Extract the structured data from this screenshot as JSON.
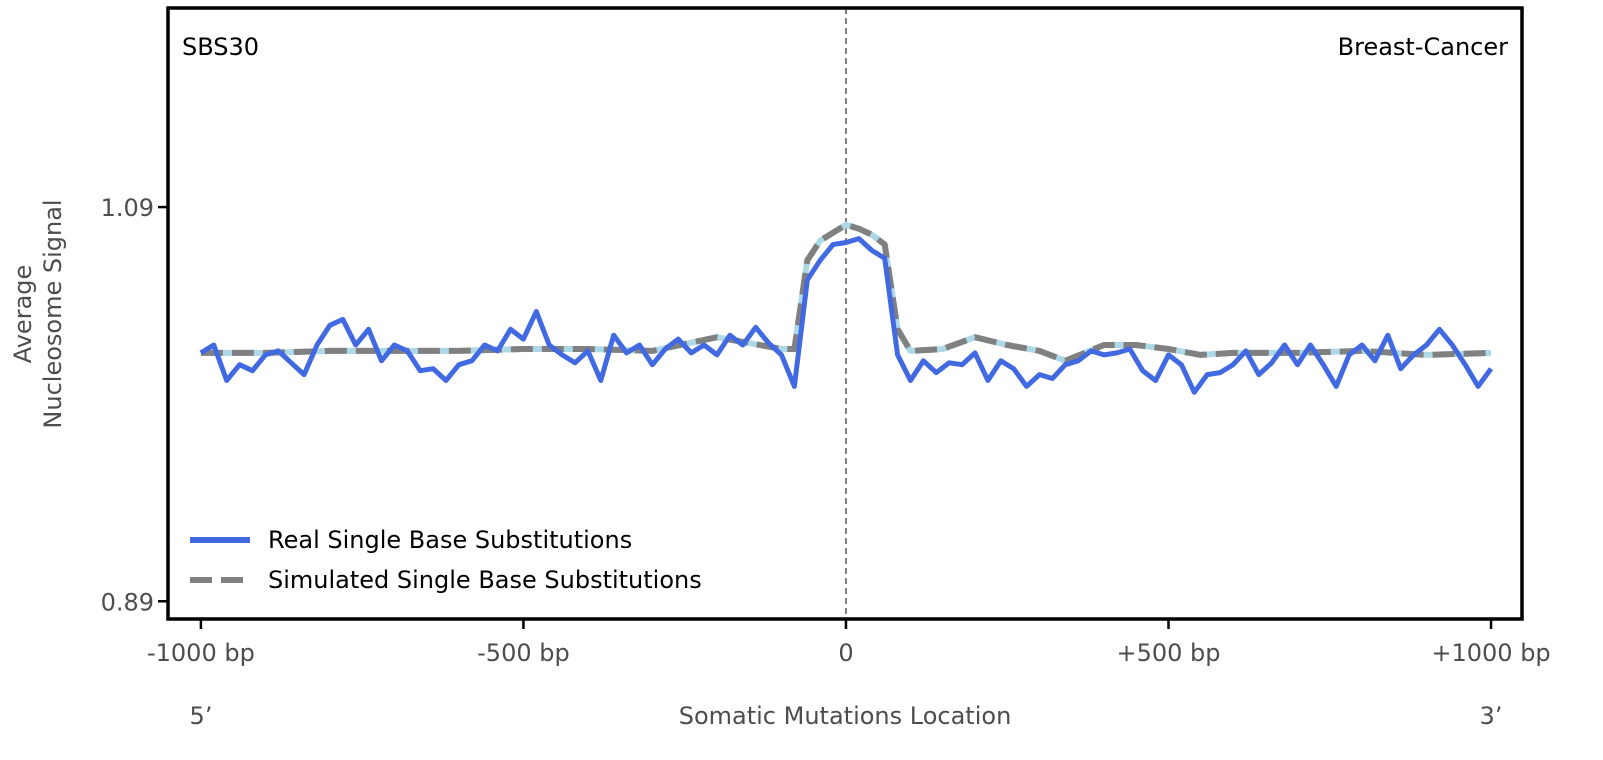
{
  "chart_data": {
    "type": "line",
    "annotations": {
      "left": "SBS30",
      "right": "Breast-Cancer"
    },
    "xlabel": "Somatic Mutations Location",
    "ylabel": [
      "Average",
      "Nucleosome Signal"
    ],
    "x_end_labels": {
      "left": "5’",
      "right": "3’"
    },
    "xlim": [
      -1051,
      1048
    ],
    "ylim": [
      0.881,
      1.191
    ],
    "xticks": [
      {
        "value": -1000,
        "label": "-1000 bp"
      },
      {
        "value": -500,
        "label": "-500 bp"
      },
      {
        "value": 0,
        "label": "0"
      },
      {
        "value": 500,
        "label": "+500 bp"
      },
      {
        "value": 1000,
        "label": "+1000 bp"
      }
    ],
    "yticks": [
      {
        "value": 0.89,
        "label": "0.89"
      },
      {
        "value": 1.09,
        "label": "1.09"
      }
    ],
    "grid": false,
    "center_line": {
      "x": 0,
      "style": "dashed",
      "color": "#808080"
    },
    "legend_placement": "lower-left",
    "series": [
      {
        "name": "Real Single Base Substitutions",
        "color": "#4169e1",
        "style": "solid",
        "x": [
          -1000,
          -980,
          -960,
          -940,
          -920,
          -900,
          -880,
          -860,
          -840,
          -820,
          -800,
          -780,
          -760,
          -740,
          -720,
          -700,
          -680,
          -660,
          -640,
          -620,
          -600,
          -580,
          -560,
          -540,
          -520,
          -500,
          -480,
          -460,
          -440,
          -420,
          -400,
          -380,
          -360,
          -340,
          -320,
          -300,
          -280,
          -260,
          -240,
          -220,
          -200,
          -180,
          -160,
          -140,
          -120,
          -100,
          -80,
          -60,
          -40,
          -20,
          0,
          20,
          40,
          60,
          80,
          100,
          120,
          140,
          160,
          180,
          200,
          220,
          240,
          260,
          280,
          300,
          320,
          340,
          360,
          380,
          400,
          420,
          440,
          460,
          480,
          500,
          520,
          540,
          560,
          580,
          600,
          620,
          640,
          660,
          680,
          700,
          720,
          740,
          760,
          780,
          800,
          820,
          840,
          860,
          880,
          900,
          920,
          940,
          960,
          980,
          1000
        ],
        "y": [
          1.016,
          1.02,
          1.002,
          1.01,
          1.007,
          1.015,
          1.017,
          1.011,
          1.005,
          1.02,
          1.03,
          1.033,
          1.02,
          1.028,
          1.012,
          1.02,
          1.017,
          1.007,
          1.008,
          1.002,
          1.01,
          1.012,
          1.02,
          1.017,
          1.028,
          1.023,
          1.037,
          1.02,
          1.015,
          1.011,
          1.017,
          1.002,
          1.025,
          1.016,
          1.02,
          1.01,
          1.018,
          1.023,
          1.016,
          1.02,
          1.015,
          1.025,
          1.02,
          1.029,
          1.021,
          1.015,
          0.999,
          1.053,
          1.063,
          1.071,
          1.072,
          1.074,
          1.068,
          1.064,
          1.015,
          1.002,
          1.012,
          1.006,
          1.011,
          1.01,
          1.016,
          1.002,
          1.012,
          1.008,
          0.999,
          1.005,
          1.003,
          1.01,
          1.012,
          1.017,
          1.015,
          1.016,
          1.018,
          1.007,
          1.002,
          1.015,
          1.01,
          0.996,
          1.005,
          1.006,
          1.01,
          1.017,
          1.005,
          1.011,
          1.02,
          1.01,
          1.02,
          1.01,
          0.999,
          1.015,
          1.02,
          1.012,
          1.025,
          1.008,
          1.015,
          1.02,
          1.028,
          1.02,
          1.01,
          0.999,
          1.008
        ]
      },
      {
        "name": "Simulated Single Base Substitutions",
        "color": "#808080",
        "underlay_color": "#add8e6",
        "style": "dashed",
        "x": [
          -1000,
          -900,
          -800,
          -700,
          -600,
          -500,
          -400,
          -300,
          -200,
          -100,
          -80,
          -60,
          -40,
          -20,
          0,
          20,
          40,
          60,
          80,
          100,
          150,
          200,
          250,
          300,
          340,
          400,
          450,
          500,
          550,
          600,
          700,
          800,
          900,
          1000
        ],
        "y": [
          1.016,
          1.016,
          1.017,
          1.017,
          1.017,
          1.018,
          1.018,
          1.017,
          1.024,
          1.018,
          1.018,
          1.063,
          1.073,
          1.077,
          1.081,
          1.079,
          1.076,
          1.071,
          1.028,
          1.017,
          1.018,
          1.024,
          1.02,
          1.017,
          1.012,
          1.02,
          1.02,
          1.018,
          1.015,
          1.016,
          1.016,
          1.017,
          1.015,
          1.016
        ]
      }
    ]
  }
}
